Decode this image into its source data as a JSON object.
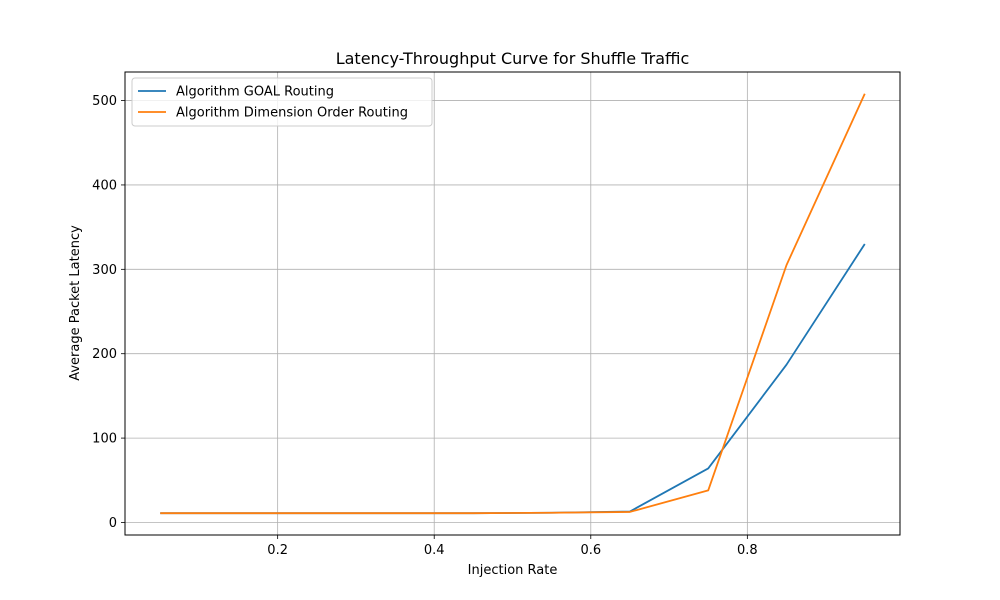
{
  "chart_data": {
    "type": "line",
    "title": "Latency-Throughput Curve for Shuffle Traffic",
    "xlabel": "Injection Rate",
    "ylabel": "Average Packet Latency",
    "x": [
      0.05,
      0.15,
      0.25,
      0.35,
      0.45,
      0.55,
      0.65,
      0.75,
      0.85,
      0.95
    ],
    "series": [
      {
        "name": "Algorithm GOAL Routing",
        "color": "#1f77b4",
        "values": [
          11,
          11,
          11,
          11,
          11,
          11.5,
          13,
          64,
          187,
          330
        ]
      },
      {
        "name": "Algorithm Dimension Order Routing",
        "color": "#ff7f0e",
        "values": [
          11,
          11,
          11,
          11,
          11,
          11.5,
          12.5,
          38,
          305,
          508
        ]
      }
    ],
    "xlim": [
      0.005,
      0.995
    ],
    "ylim": [
      -14.85,
      533.85
    ],
    "xticks": [
      0.2,
      0.4,
      0.6,
      0.8
    ],
    "xtick_labels": [
      "0.2",
      "0.4",
      "0.6",
      "0.8"
    ],
    "yticks": [
      0,
      100,
      200,
      300,
      400,
      500
    ],
    "ytick_labels": [
      "0",
      "100",
      "200",
      "300",
      "400",
      "500"
    ],
    "grid": true,
    "legend_position": "top-left"
  }
}
